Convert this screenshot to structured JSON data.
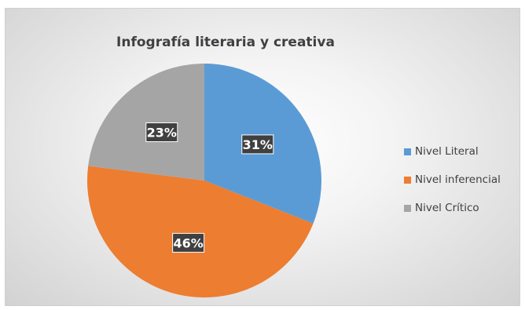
{
  "chart_data": {
    "type": "pie",
    "title": "Infografía  literaria y creativa",
    "categories": [
      "Nivel Literal",
      "Nivel inferencial",
      "Nivel Crítico"
    ],
    "values": [
      31,
      46,
      23
    ],
    "data_labels": [
      "31%",
      "46%",
      "23%"
    ],
    "colors": [
      "#5B9BD5",
      "#ED7D31",
      "#A5A5A5"
    ],
    "legend_position": "right",
    "label_style": {
      "background": "#404040",
      "color": "#FFFFFF"
    }
  }
}
